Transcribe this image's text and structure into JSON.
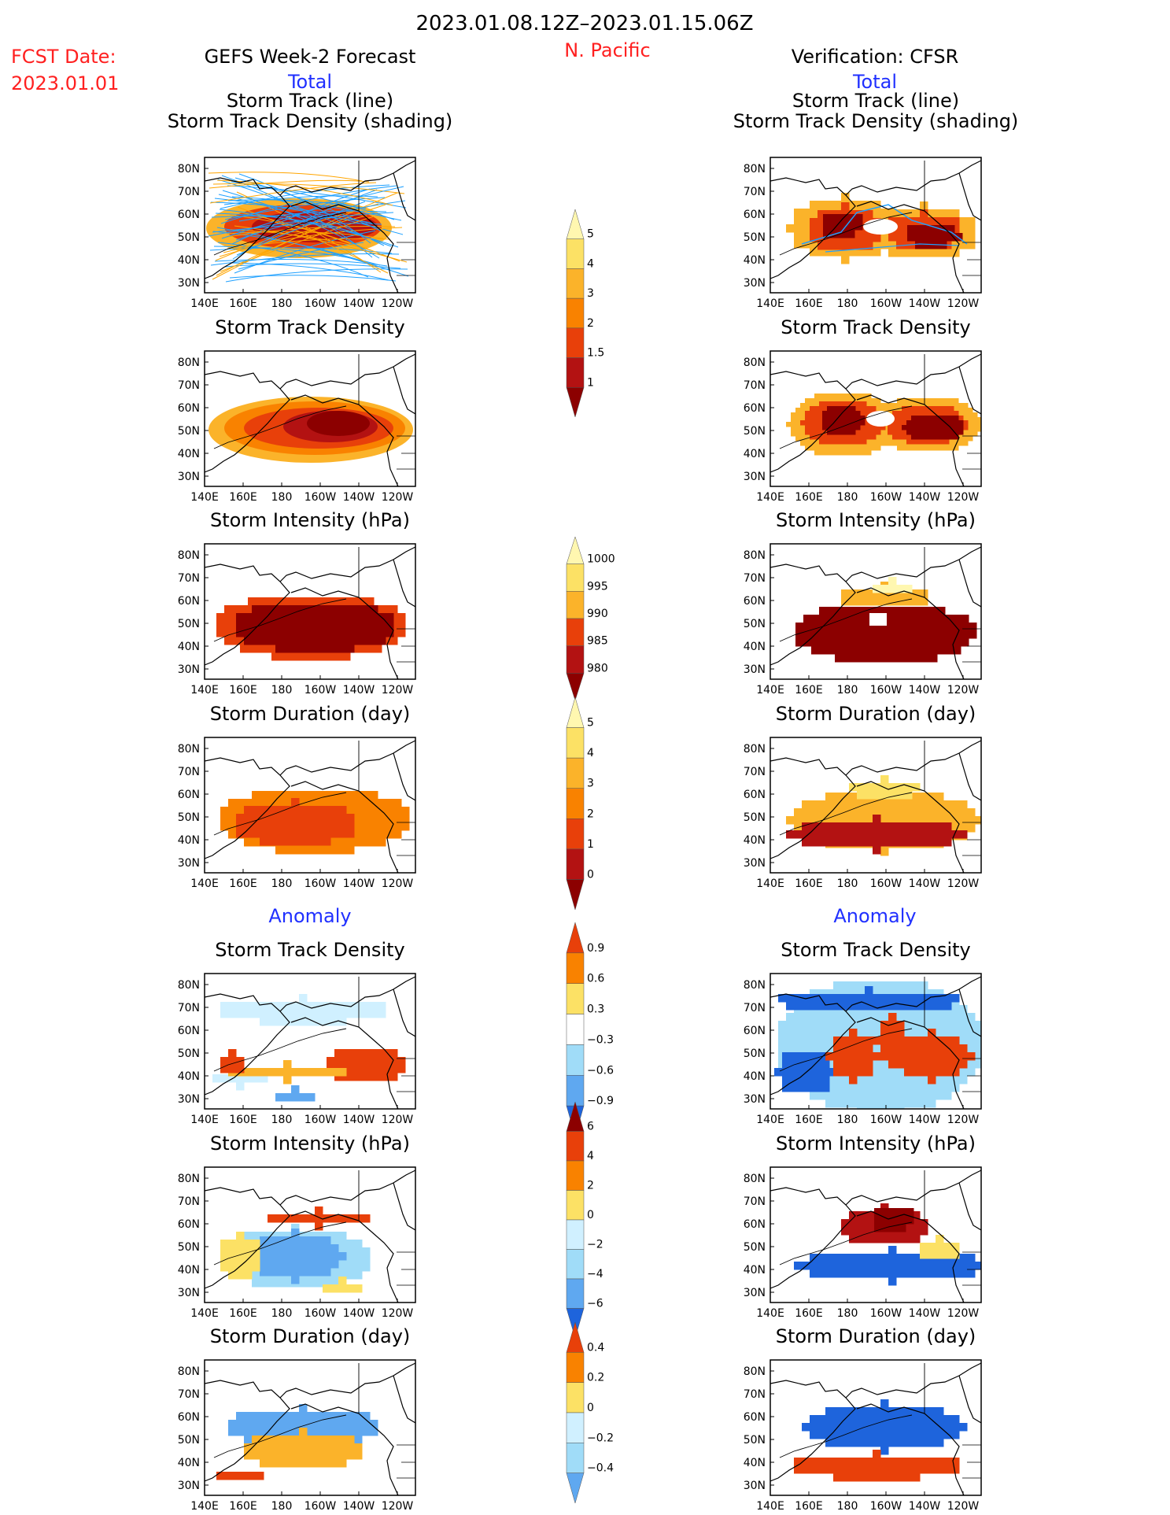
{
  "header": {
    "date_range": "2023.01.08.12Z–2023.01.15.06Z",
    "fcst_label": "FCST Date:",
    "fcst_date": "2023.01.01",
    "region": "N. Pacific",
    "left_title": "GEFS Week-2 Forecast",
    "right_title": "Verification: CFSR",
    "left_sub": "Total",
    "right_sub": "Total",
    "anomaly_left": "Anomaly",
    "anomaly_right": "Anomaly"
  },
  "colors": {
    "title_red": "#ff2020",
    "subtitle_blue": "#2030ff",
    "track_cyan": "#1ea0ff",
    "track_orange": "#ffa500",
    "warm": [
      "#fff7b0",
      "#fce165",
      "#fbb32a",
      "#f98200",
      "#e8400a",
      "#b31212",
      "#8c0000"
    ],
    "cool": [
      "#d0f0ff",
      "#a0dcf8",
      "#5fa8f0",
      "#1e64dc",
      "#0a3ca0"
    ]
  },
  "axes": {
    "lat_ticks": [
      "80N",
      "70N",
      "60N",
      "50N",
      "40N",
      "30N"
    ],
    "lon_ticks": [
      "140E",
      "160E",
      "180",
      "160W",
      "140W",
      "120W"
    ]
  },
  "chart_data": [
    {
      "type": "heatmap",
      "side": "forecast",
      "section": "Total",
      "title": "Storm Track (line)",
      "title2": "Storm Track Density (shading)"
    },
    {
      "type": "heatmap",
      "side": "verification",
      "section": "Total",
      "title": "Storm Track (line)",
      "title2": "Storm Track Density (shading)"
    },
    {
      "type": "heatmap",
      "side": "forecast",
      "section": "Total",
      "title": "Storm Track Density"
    },
    {
      "type": "heatmap",
      "side": "verification",
      "section": "Total",
      "title": "Storm Track Density"
    },
    {
      "type": "heatmap",
      "side": "forecast",
      "section": "Total",
      "title": "Storm Intensity (hPa)"
    },
    {
      "type": "heatmap",
      "side": "verification",
      "section": "Total",
      "title": "Storm Intensity (hPa)"
    },
    {
      "type": "heatmap",
      "side": "forecast",
      "section": "Total",
      "title": "Storm Duration (day)"
    },
    {
      "type": "heatmap",
      "side": "verification",
      "section": "Total",
      "title": "Storm Duration (day)"
    },
    {
      "type": "heatmap",
      "side": "forecast",
      "section": "Anomaly",
      "title": "Storm Track Density"
    },
    {
      "type": "heatmap",
      "side": "verification",
      "section": "Anomaly",
      "title": "Storm Track Density"
    },
    {
      "type": "heatmap",
      "side": "forecast",
      "section": "Anomaly",
      "title": "Storm Intensity (hPa)"
    },
    {
      "type": "heatmap",
      "side": "verification",
      "section": "Anomaly",
      "title": "Storm Intensity (hPa)"
    },
    {
      "type": "heatmap",
      "side": "forecast",
      "section": "Anomaly",
      "title": "Storm Duration (day)"
    },
    {
      "type": "heatmap",
      "side": "verification",
      "section": "Anomaly",
      "title": "Storm Duration (day)"
    }
  ],
  "colorbars": [
    {
      "name": "track-density",
      "labels": [
        "5",
        "4",
        "3",
        "2",
        "1.5",
        "1"
      ]
    },
    {
      "name": "intensity",
      "labels": [
        "1000",
        "995",
        "990",
        "985",
        "980"
      ]
    },
    {
      "name": "duration",
      "labels": [
        "5",
        "4",
        "3",
        "2",
        "1",
        "0"
      ]
    },
    {
      "name": "density-anomaly",
      "labels": [
        "0.9",
        "0.6",
        "0.3",
        "−0.3",
        "−0.6",
        "−0.9"
      ]
    },
    {
      "name": "intensity-anomaly",
      "labels": [
        "6",
        "4",
        "2",
        "0",
        "−2",
        "−4",
        "−6"
      ]
    },
    {
      "name": "duration-anomaly",
      "labels": [
        "0.4",
        "0.2",
        "0",
        "−0.2",
        "−0.4"
      ]
    }
  ]
}
